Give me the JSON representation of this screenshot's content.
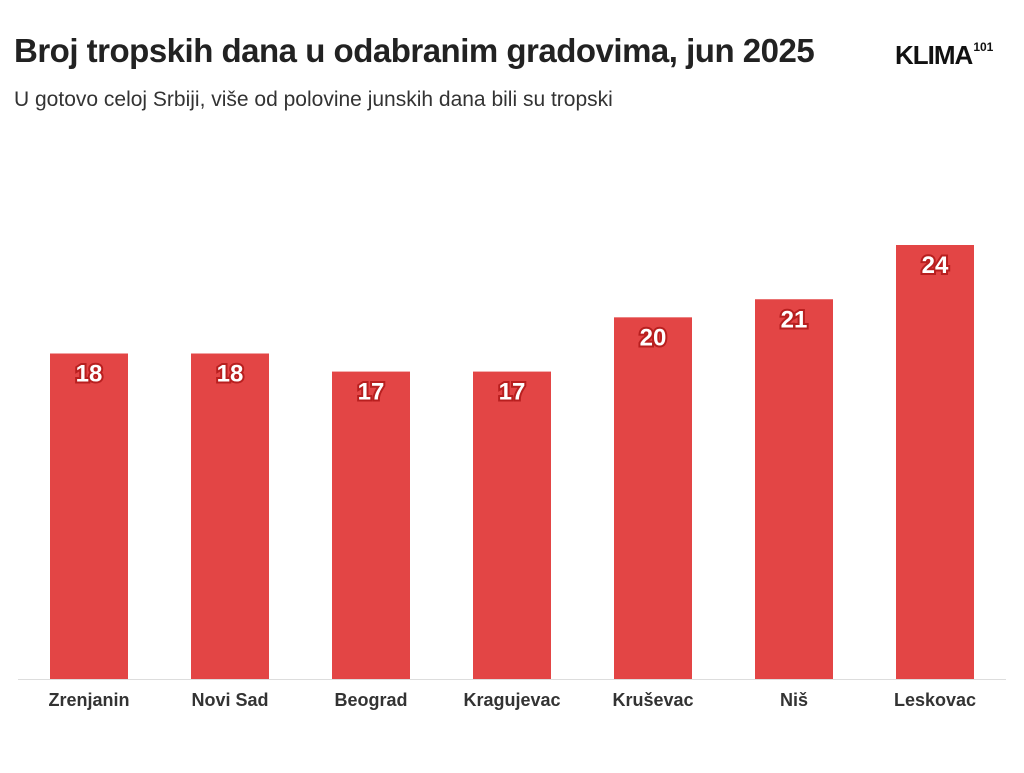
{
  "header": {
    "title": "Broj tropskih dana u odabranim gradovima, jun 2025",
    "subtitle": "U gotovo celoj Srbiji, više od polovine junskih dana bili su tropski"
  },
  "logo": {
    "main": "KLIMA",
    "sup": "101"
  },
  "colors": {
    "bar": "#e34545",
    "label_stroke": "#b81f1f"
  },
  "chart_data": {
    "type": "bar",
    "title": "Broj tropskih dana u odabranim gradovima, jun 2025",
    "subtitle": "U gotovo celoj Srbiji, više od polovine junskih dana bili su tropski",
    "categories": [
      "Zrenjanin",
      "Novi Sad",
      "Beograd",
      "Kragujevac",
      "Kruševac",
      "Niš",
      "Leskovac"
    ],
    "values": [
      18,
      18,
      17,
      17,
      20,
      21,
      24
    ],
    "xlabel": "",
    "ylabel": "",
    "ylim": [
      0,
      24
    ],
    "grid": false,
    "legend": "none"
  }
}
